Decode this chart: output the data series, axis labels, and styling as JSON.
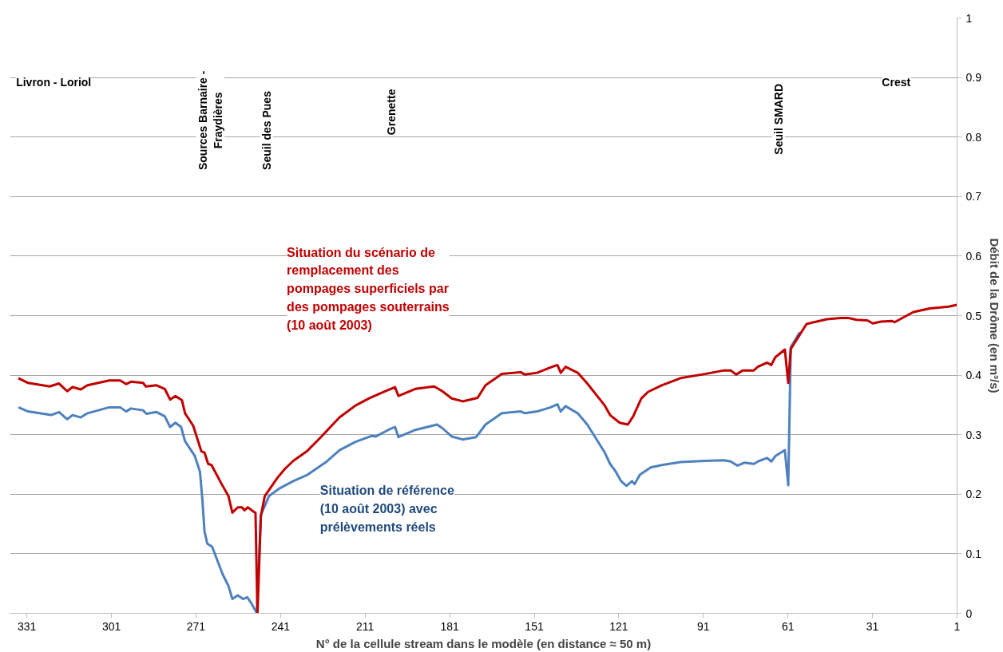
{
  "chart_data": {
    "type": "line",
    "xlabel": "N° de la cellule stream dans le modèle (en distance ≈ 50 m)",
    "ylabel": "Débit de la Drôme (en m³/s)",
    "xlim": [
      337,
      1
    ],
    "ylim": [
      0,
      1
    ],
    "xticks": [
      331,
      301,
      271,
      241,
      211,
      181,
      151,
      121,
      91,
      61,
      31,
      1
    ],
    "yticks": [
      0,
      0.1,
      0.2,
      0.3,
      0.4,
      0.5,
      0.6,
      0.7,
      0.8,
      0.9,
      1
    ],
    "grid": "y",
    "marker": "none",
    "line_style": "solid",
    "annotations": [
      "Livron - Loriol",
      "Sources Barnaire -\nFraydières",
      "Seuil des Pues",
      "Grenette",
      "Seuil SMARD",
      "Crest",
      "Situation de référence\n(10 août 2003) avec\nprélèvements réels",
      "Situation du scénario de\nremplacement des\npompages superficiels par\ndes pompages souterrains\n(10 août 2003)"
    ],
    "series": [
      {
        "color": "#4f81bd",
        "x": [
          334.0,
          330.6,
          322.4,
          319.6,
          316.7,
          314.8,
          311.9,
          309.5,
          301.8,
          297.9,
          295.8,
          294.1,
          289.8,
          288.6,
          285.0,
          282.1,
          280.2,
          278.3,
          276.3,
          274.9,
          271.5,
          269.6,
          268.7,
          268.0,
          267.0,
          265.3,
          261.5,
          259.5,
          258.1,
          256.2,
          254.3,
          252.8,
          251.4,
          249.4,
          248.0,
          245.1,
          241.3,
          236.5,
          231.7,
          224.9,
          220.1,
          214.4,
          208.6,
          207.2,
          202.8,
          200.4,
          199.2,
          193.2,
          185.5,
          183.6,
          180.3,
          176.4,
          171.6,
          168.3,
          162.5,
          155.8,
          154.3,
          150.0,
          145.2,
          142.8,
          141.6,
          139.9,
          135.6,
          132.2,
          126.0,
          124.1,
          122.1,
          120.2,
          118.3,
          116.3,
          115.4,
          113.5,
          109.7,
          105.8,
          99.1,
          90.4,
          83.7,
          81.3,
          78.9,
          76.5,
          73.1,
          71.2,
          68.4,
          66.9,
          65.5,
          62.1,
          60.9,
          60.0,
          56.8
        ],
        "values": [
          0.346,
          0.339,
          0.333,
          0.338,
          0.326,
          0.333,
          0.329,
          0.336,
          0.346,
          0.346,
          0.339,
          0.344,
          0.341,
          0.335,
          0.338,
          0.331,
          0.313,
          0.32,
          0.313,
          0.289,
          0.265,
          0.238,
          0.188,
          0.138,
          0.117,
          0.112,
          0.065,
          0.046,
          0.024,
          0.03,
          0.024,
          0.027,
          0.017,
          0.0,
          0.165,
          0.197,
          0.21,
          0.222,
          0.232,
          0.254,
          0.274,
          0.288,
          0.298,
          0.297,
          0.308,
          0.313,
          0.296,
          0.308,
          0.317,
          0.311,
          0.297,
          0.292,
          0.296,
          0.317,
          0.336,
          0.339,
          0.336,
          0.339,
          0.346,
          0.351,
          0.339,
          0.348,
          0.336,
          0.317,
          0.27,
          0.251,
          0.238,
          0.222,
          0.214,
          0.222,
          0.217,
          0.233,
          0.245,
          0.249,
          0.254,
          0.256,
          0.257,
          0.255,
          0.248,
          0.253,
          0.251,
          0.256,
          0.261,
          0.255,
          0.264,
          0.274,
          0.215,
          0.447,
          0.472
        ]
      },
      {
        "color": "#c00000",
        "x": [
          334.0,
          330.6,
          322.9,
          319.6,
          316.7,
          314.8,
          311.9,
          309.5,
          301.8,
          297.9,
          295.8,
          294.1,
          289.8,
          288.8,
          285.0,
          282.1,
          280.2,
          278.3,
          276.0,
          274.9,
          272.0,
          269.1,
          268.0,
          266.7,
          265.5,
          261.9,
          259.5,
          258.1,
          256.2,
          254.7,
          253.8,
          252.6,
          250.4,
          249.9,
          249.2,
          248.0,
          246.6,
          242.2,
          239.4,
          236.5,
          231.7,
          226.9,
          224.9,
          220.1,
          214.4,
          209.6,
          204.3,
          200.4,
          199.2,
          193.2,
          186.5,
          183.6,
          180.3,
          176.4,
          171.1,
          168.3,
          162.5,
          155.8,
          154.3,
          150.0,
          145.2,
          142.8,
          141.6,
          139.9,
          135.6,
          132.2,
          126.0,
          124.1,
          120.7,
          117.8,
          115.9,
          113.0,
          110.6,
          105.8,
          99.1,
          90.4,
          83.7,
          81.3,
          79.4,
          77.0,
          73.1,
          71.7,
          68.4,
          66.9,
          65.5,
          62.1,
          60.9,
          60.0,
          56.8,
          54.4,
          47.2,
          42.4,
          39.5,
          36.6,
          32.8,
          30.9,
          28.0,
          24.2,
          23.2,
          16.5,
          10.7,
          4.0,
          1.1
        ],
        "values": [
          0.395,
          0.387,
          0.381,
          0.386,
          0.373,
          0.38,
          0.376,
          0.383,
          0.391,
          0.391,
          0.385,
          0.389,
          0.387,
          0.381,
          0.383,
          0.377,
          0.359,
          0.365,
          0.358,
          0.336,
          0.315,
          0.272,
          0.27,
          0.251,
          0.249,
          0.217,
          0.197,
          0.169,
          0.178,
          0.178,
          0.173,
          0.178,
          0.17,
          0.169,
          0.0,
          0.163,
          0.197,
          0.227,
          0.243,
          0.256,
          0.272,
          0.295,
          0.305,
          0.329,
          0.349,
          0.361,
          0.372,
          0.38,
          0.365,
          0.377,
          0.381,
          0.373,
          0.361,
          0.356,
          0.362,
          0.383,
          0.402,
          0.405,
          0.401,
          0.404,
          0.413,
          0.417,
          0.404,
          0.414,
          0.404,
          0.386,
          0.349,
          0.333,
          0.32,
          0.317,
          0.331,
          0.361,
          0.372,
          0.383,
          0.395,
          0.402,
          0.408,
          0.408,
          0.401,
          0.408,
          0.408,
          0.414,
          0.421,
          0.417,
          0.43,
          0.443,
          0.387,
          0.444,
          0.468,
          0.486,
          0.494,
          0.496,
          0.496,
          0.493,
          0.492,
          0.487,
          0.49,
          0.491,
          0.489,
          0.506,
          0.512,
          0.515,
          0.518
        ]
      }
    ]
  }
}
